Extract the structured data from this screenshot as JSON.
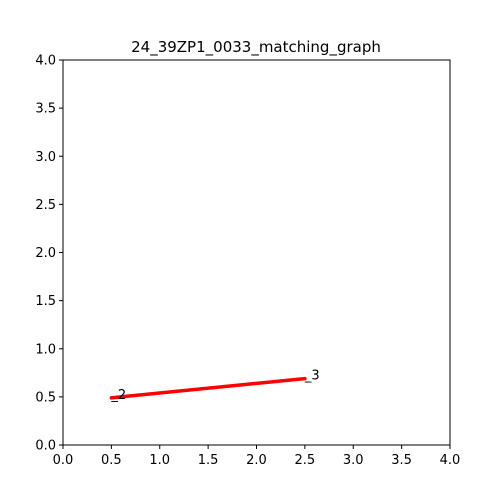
{
  "chart_data": {
    "type": "line",
    "title": "24_39ZP1_0033_matching_graph",
    "xlabel": "",
    "ylabel": "",
    "xlim": [
      0.0,
      4.0
    ],
    "ylim": [
      0.0,
      4.0
    ],
    "xticks": [
      "0.0",
      "0.5",
      "1.0",
      "1.5",
      "2.0",
      "2.5",
      "3.0",
      "3.5",
      "4.0"
    ],
    "yticks": [
      "0.0",
      "0.5",
      "1.0",
      "1.5",
      "2.0",
      "2.5",
      "3.0",
      "3.5",
      "4.0"
    ],
    "grid": false,
    "points": [
      {
        "label": "_2",
        "x": 0.5,
        "y": 0.49
      },
      {
        "label": "_3",
        "x": 2.5,
        "y": 0.69
      }
    ],
    "edges": [
      {
        "from": 0,
        "to": 1,
        "color": "#ff0000"
      }
    ]
  }
}
